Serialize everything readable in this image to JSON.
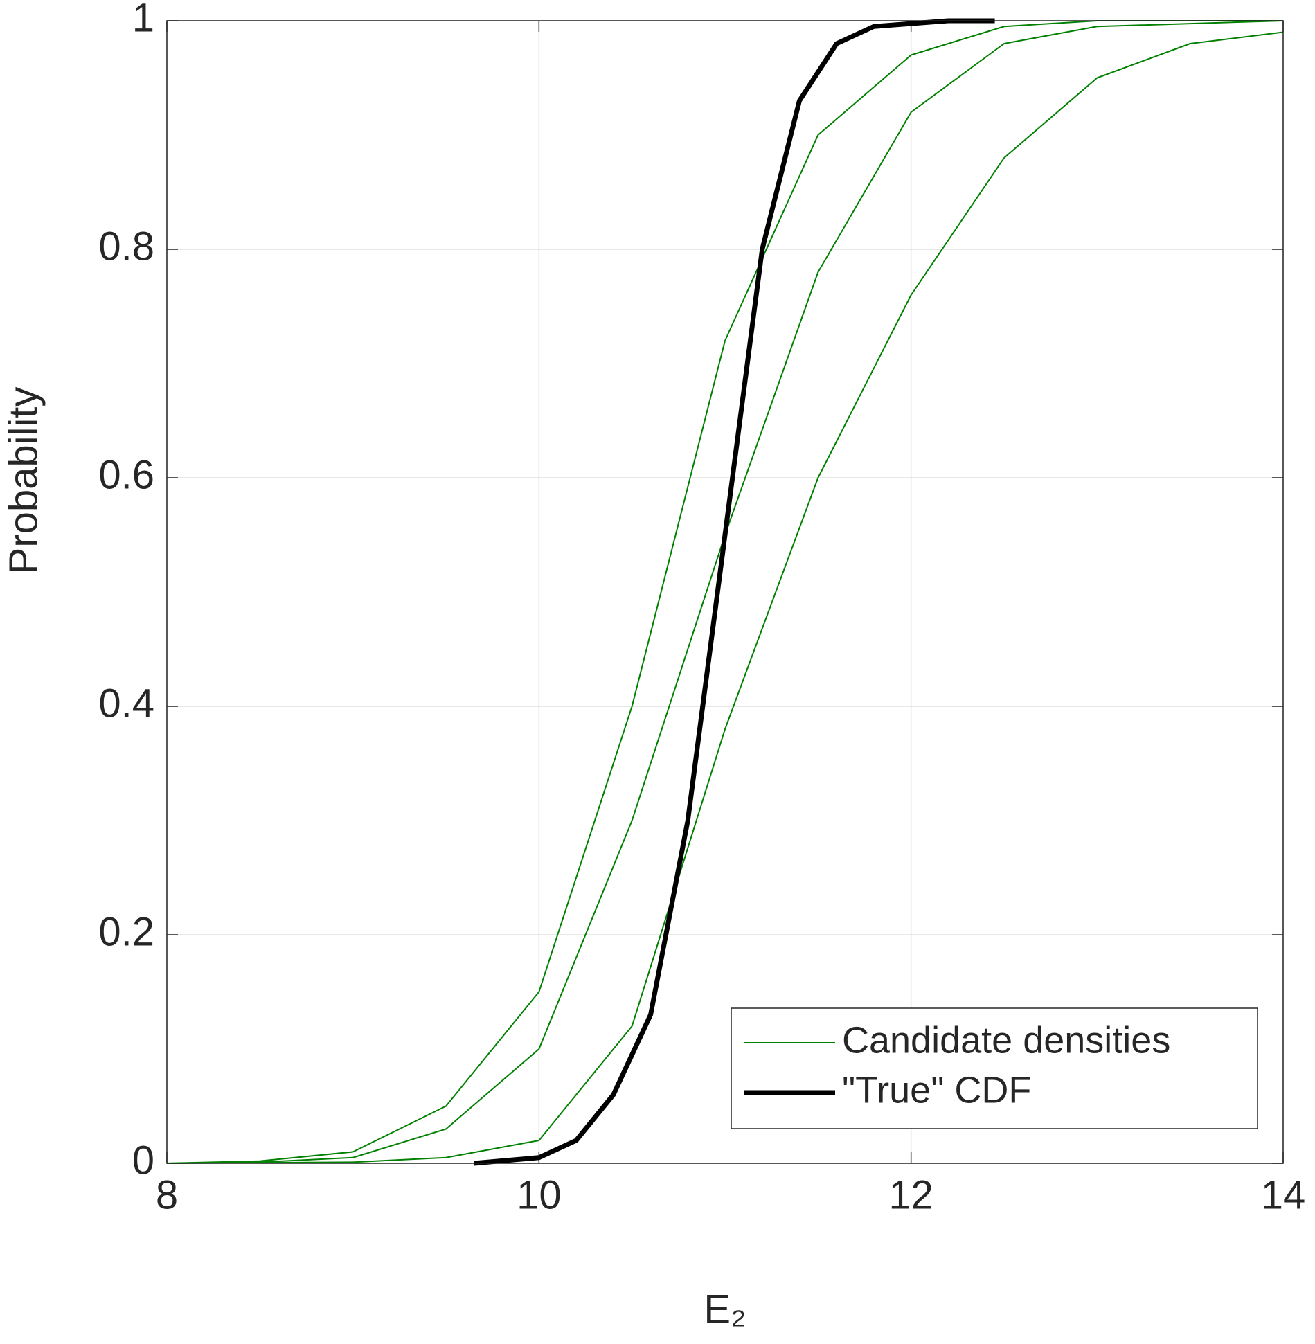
{
  "chart_data": {
    "type": "line",
    "xlabel": "E₂",
    "ylabel": "Probability",
    "xlim": [
      8,
      14
    ],
    "xticks": [
      8,
      10,
      12,
      14
    ],
    "ylim": [
      0,
      1
    ],
    "yticks": [
      0,
      0.2,
      0.4,
      0.6,
      0.8,
      1
    ],
    "grid": true,
    "legend": "lower right",
    "series": [
      {
        "name": "Candidate densities",
        "color": "#008000",
        "width": 2,
        "x": [
          8,
          8.5,
          9,
          9.5,
          10,
          10.5,
          11,
          11.5,
          12,
          12.5,
          13,
          14
        ],
        "y": [
          0,
          0.001,
          0.005,
          0.03,
          0.1,
          0.3,
          0.55,
          0.78,
          0.92,
          0.98,
          0.995,
          1
        ]
      },
      {
        "color": "#008000",
        "width": 2,
        "x": [
          8,
          8.5,
          9,
          9.5,
          10,
          10.5,
          11,
          11.5,
          12,
          12.5,
          13,
          14
        ],
        "y": [
          0,
          0.002,
          0.01,
          0.05,
          0.15,
          0.4,
          0.72,
          0.9,
          0.97,
          0.995,
          1,
          1
        ]
      },
      {
        "color": "#008000",
        "width": 2,
        "x": [
          8,
          9,
          9.5,
          10,
          10.5,
          11,
          11.5,
          12,
          12.5,
          13,
          13.5,
          14
        ],
        "y": [
          0,
          0.001,
          0.005,
          0.02,
          0.12,
          0.38,
          0.6,
          0.76,
          0.88,
          0.95,
          0.98,
          0.99
        ]
      },
      {
        "name": "\"True\" CDF",
        "color": "#000000",
        "width": 7,
        "x": [
          9.65,
          10,
          10.2,
          10.4,
          10.6,
          10.8,
          11,
          11.2,
          11.4,
          11.6,
          11.8,
          12.2,
          12.45
        ],
        "y": [
          0,
          0.005,
          0.02,
          0.06,
          0.13,
          0.3,
          0.55,
          0.8,
          0.93,
          0.98,
          0.995,
          1,
          1
        ]
      }
    ]
  }
}
